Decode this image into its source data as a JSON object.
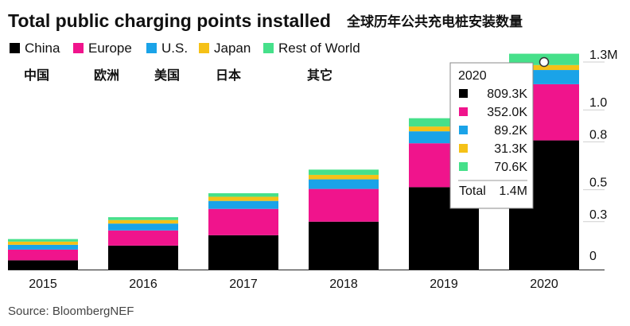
{
  "title": "Total public charging points installed",
  "subtitle": "全球历年公共充电桩安装数量",
  "source": "Source: BloombergNEF",
  "colors": {
    "China": "#000000",
    "Europe": "#f0148c",
    "U.S.": "#1aa3e8",
    "Japan": "#f5c117",
    "Rest of World": "#46e08a"
  },
  "annotations": [
    "中国",
    "欧洲",
    "美国",
    "日本",
    "其它"
  ],
  "tooltip": {
    "year": "2020",
    "rows": [
      "809.3K",
      "352.0K",
      "89.2K",
      "31.3K",
      "70.6K"
    ],
    "total_label": "Total",
    "total_value": "1.4M"
  },
  "chart_data": {
    "type": "bar",
    "stacked": true,
    "categories": [
      "2015",
      "2016",
      "2017",
      "2018",
      "2019",
      "2020"
    ],
    "series": [
      {
        "name": "China",
        "values": [
          0.058,
          0.15,
          0.215,
          0.3,
          0.516,
          0.809
        ]
      },
      {
        "name": "Europe",
        "values": [
          0.067,
          0.095,
          0.165,
          0.205,
          0.275,
          0.352
        ]
      },
      {
        "name": "U.S.",
        "values": [
          0.03,
          0.043,
          0.05,
          0.06,
          0.075,
          0.089
        ]
      },
      {
        "name": "Japan",
        "values": [
          0.02,
          0.022,
          0.026,
          0.028,
          0.03,
          0.031
        ]
      },
      {
        "name": "Rest of World",
        "values": [
          0.016,
          0.018,
          0.022,
          0.033,
          0.052,
          0.071
        ]
      }
    ],
    "yticks": [
      0,
      0.3,
      0.5,
      0.8,
      1.0,
      1.3
    ],
    "ytick_labels": [
      "0",
      "0.3",
      "0.5",
      "0.8",
      "1.0",
      "1.3M"
    ],
    "ylim": [
      0,
      1.3
    ],
    "legend_position": "top-left",
    "grid": true
  }
}
